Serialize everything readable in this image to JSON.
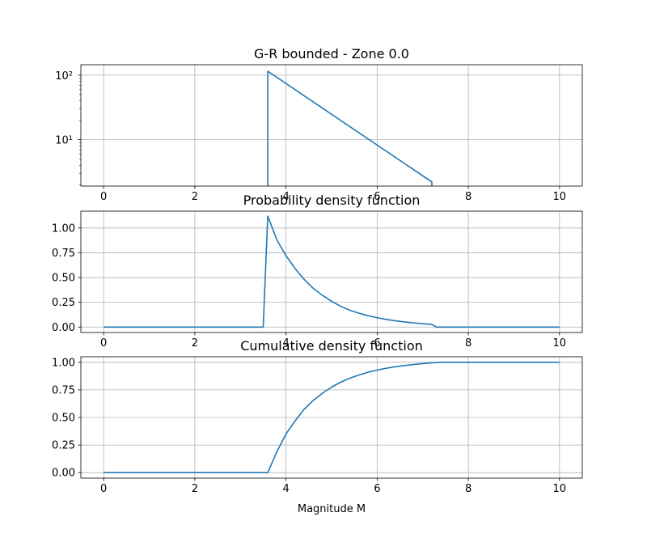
{
  "chart_data": [
    {
      "type": "line",
      "title": "G-R bounded - Zone 0.0",
      "xlabel": "",
      "ylabel": "",
      "yscale": "log",
      "grid": true,
      "xlim": [
        -0.5,
        10.5
      ],
      "ylim": [
        1.9,
        145
      ],
      "xticks": [
        0,
        2,
        4,
        6,
        8,
        10
      ],
      "xtick_labels": [
        "0",
        "2",
        "4",
        "6",
        "8",
        "10"
      ],
      "yticks": [
        10,
        100
      ],
      "ytick_labels": [
        "10¹",
        "10²"
      ],
      "series": [
        {
          "color": "#1f77b4",
          "x": [
            3.6,
            3.6,
            7.2,
            7.2
          ],
          "y": [
            1.9,
            115,
            2.2,
            1.9
          ]
        }
      ]
    },
    {
      "type": "line",
      "title": "Probability density function",
      "xlabel": "",
      "ylabel": "",
      "grid": true,
      "xlim": [
        -0.5,
        10.5
      ],
      "ylim": [
        -0.055,
        1.17
      ],
      "xticks": [
        0,
        2,
        4,
        6,
        8,
        10
      ],
      "xtick_labels": [
        "0",
        "2",
        "4",
        "6",
        "8",
        "10"
      ],
      "yticks": [
        0,
        0.25,
        0.5,
        0.75,
        1.0
      ],
      "ytick_labels": [
        "0.00",
        "0.25",
        "0.50",
        "0.75",
        "1.00"
      ],
      "series": [
        {
          "color": "#1f77b4",
          "x": [
            0,
            3.5,
            3.6,
            3.8,
            4.0,
            4.2,
            4.4,
            4.6,
            4.8,
            5.0,
            5.2,
            5.4,
            5.6,
            5.8,
            6.0,
            6.2,
            6.4,
            6.6,
            6.8,
            7.0,
            7.2,
            7.3,
            8,
            9,
            10
          ],
          "y": [
            0,
            0,
            1.12,
            0.88,
            0.72,
            0.59,
            0.48,
            0.39,
            0.32,
            0.26,
            0.21,
            0.17,
            0.14,
            0.115,
            0.094,
            0.077,
            0.063,
            0.052,
            0.042,
            0.034,
            0.026,
            0,
            0,
            0,
            0
          ]
        }
      ]
    },
    {
      "type": "line",
      "title": "Cumulative density function",
      "xlabel": "Magnitude M",
      "ylabel": "",
      "grid": true,
      "xlim": [
        -0.5,
        10.5
      ],
      "ylim": [
        -0.05,
        1.05
      ],
      "xticks": [
        0,
        2,
        4,
        6,
        8,
        10
      ],
      "xtick_labels": [
        "0",
        "2",
        "4",
        "6",
        "8",
        "10"
      ],
      "yticks": [
        0,
        0.25,
        0.5,
        0.75,
        1.0
      ],
      "ytick_labels": [
        "0.00",
        "0.25",
        "0.50",
        "0.75",
        "1.00"
      ],
      "series": [
        {
          "color": "#1f77b4",
          "x": [
            0,
            3.6,
            3.8,
            4.0,
            4.2,
            4.4,
            4.6,
            4.8,
            5.0,
            5.2,
            5.4,
            5.6,
            5.8,
            6.0,
            6.2,
            6.4,
            6.6,
            6.8,
            7.0,
            7.2,
            7.4,
            8,
            9,
            10
          ],
          "y": [
            0,
            0,
            0.19,
            0.35,
            0.47,
            0.575,
            0.655,
            0.72,
            0.775,
            0.82,
            0.856,
            0.885,
            0.91,
            0.93,
            0.946,
            0.96,
            0.971,
            0.98,
            0.988,
            0.995,
            1.0,
            1.0,
            1.0,
            1.0
          ]
        }
      ]
    }
  ]
}
